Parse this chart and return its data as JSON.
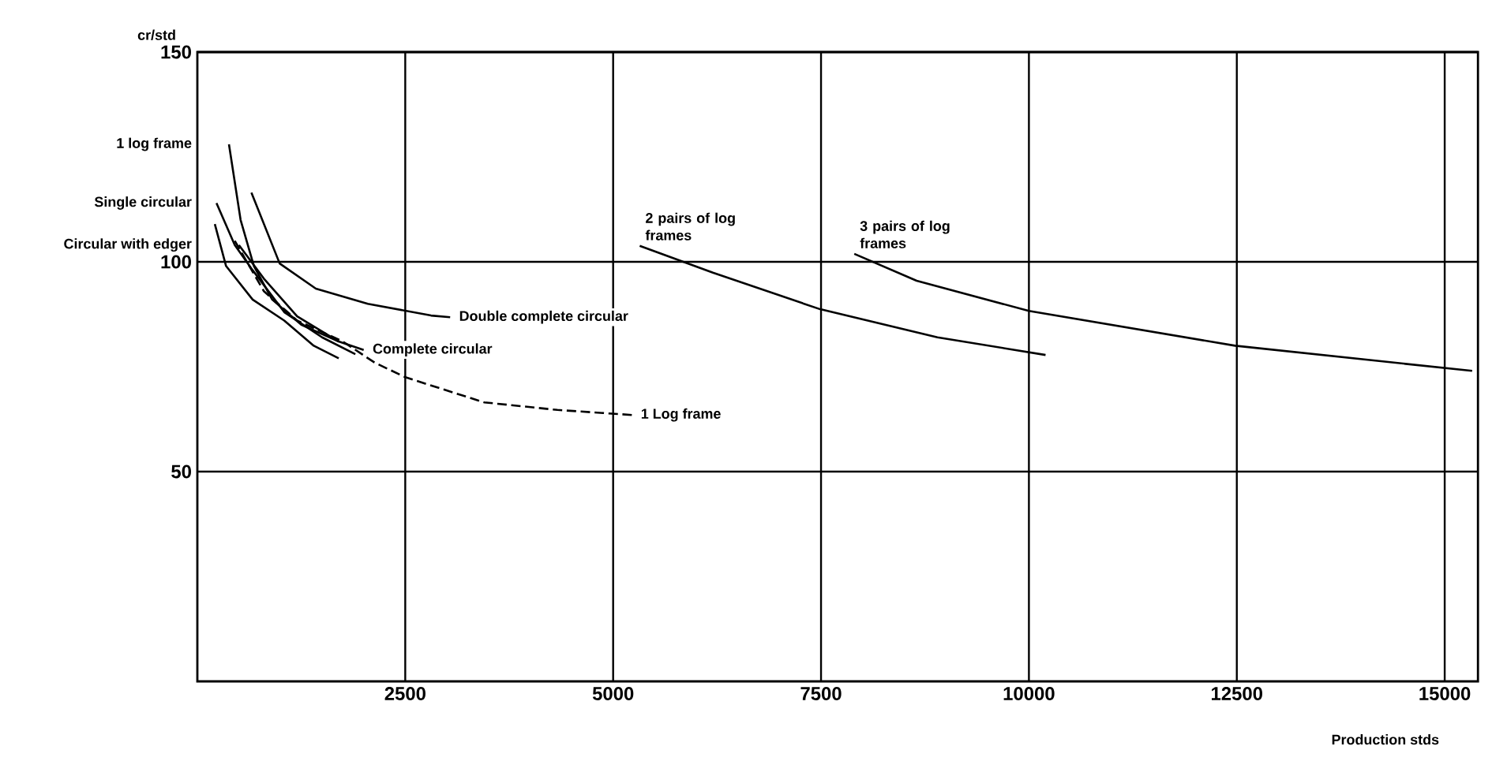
{
  "chart_data": {
    "type": "line",
    "xlabel": "Production stds",
    "ylabel": "cr/std",
    "xlim": [
      0,
      15400
    ],
    "ylim": [
      0,
      150
    ],
    "xticks": [
      2500,
      5000,
      7500,
      10000,
      12500,
      15000
    ],
    "yticks": [
      50,
      100,
      150
    ],
    "grid": true,
    "marker": "none",
    "series": [
      {
        "name": "1 log frame",
        "color": "#000000",
        "line_style": "solid",
        "x": [
          380,
          520,
          680,
          900,
          1250,
          1700
        ],
        "values": [
          128,
          110,
          99,
          91,
          85,
          81
        ]
      },
      {
        "name": "Single circular",
        "color": "#000000",
        "line_style": "solid",
        "x": [
          230,
          450,
          665,
          1045,
          1500,
          1900
        ],
        "values": [
          114,
          104,
          98,
          88,
          82,
          78
        ]
      },
      {
        "name": "Circular with edger",
        "color": "#000000",
        "line_style": "solid",
        "x": [
          210,
          345,
          665,
          1045,
          1400,
          1700
        ],
        "values": [
          109,
          99,
          91,
          86,
          80,
          77
        ]
      },
      {
        "name": "Double complete circular",
        "color": "#000000",
        "line_style": "solid",
        "x": [
          650,
          990,
          1425,
          2050,
          2810,
          3040
        ],
        "values": [
          116.5,
          99.6,
          93.6,
          90,
          87.2,
          86.8
        ]
      },
      {
        "name": "Complete circular",
        "color": "#000000",
        "line_style": "solid",
        "x": [
          500,
          800,
          1200,
          1700,
          2000
        ],
        "values": [
          104,
          96,
          87,
          81,
          79
        ]
      },
      {
        "name": "1 Log frame",
        "color": "#000000",
        "line_style": "dashed",
        "x": [
          450,
          800,
          1200,
          1750,
          2130,
          2500,
          3450,
          4330,
          5225
        ],
        "values": [
          105,
          93,
          86,
          81,
          76,
          72.5,
          66.5,
          64.7,
          63.5
        ]
      },
      {
        "name": "2 pairs of log frames",
        "color": "#000000",
        "line_style": "solid",
        "x": [
          5320,
          6200,
          7490,
          8900,
          10200
        ],
        "values": [
          103.8,
          97.4,
          88.7,
          82,
          77.8
        ]
      },
      {
        "name": "3 pairs of log frames",
        "color": "#000000",
        "line_style": "solid",
        "x": [
          7900,
          8650,
          10000,
          12480,
          15330
        ],
        "values": [
          101.9,
          95.5,
          88.3,
          80,
          74
        ]
      }
    ]
  }
}
